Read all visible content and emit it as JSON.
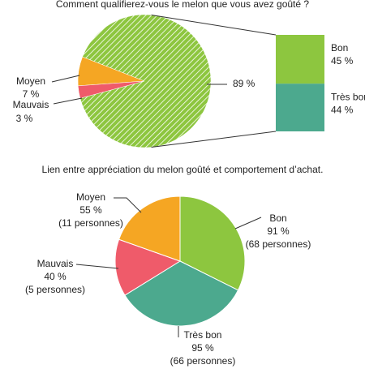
{
  "chart_data": [
    {
      "type": "bar-of-pie",
      "title": "Comment qualifierez-vous le melon que vous avez goûté ?",
      "categories": [
        null,
        "Moyen",
        "Mauvais"
      ],
      "values": [
        89,
        7,
        3
      ],
      "value_labels": [
        "89 %",
        "7 %",
        "3 %"
      ],
      "colors": [
        "#8dc63f",
        "#f5a623",
        "#ef5b6a"
      ],
      "breakdown": {
        "categories": [
          "Bon",
          "Très bon"
        ],
        "values": [
          45,
          44
        ],
        "value_labels": [
          "45 %",
          "44 %"
        ],
        "colors": [
          "#8dc63f",
          "#4ca98e"
        ]
      }
    },
    {
      "type": "pie",
      "title": "Lien entre appréciation du melon goûté et comportement d’achat.",
      "categories": [
        "Bon",
        "Très bon",
        "Mauvais",
        "Moyen"
      ],
      "values": [
        91,
        95,
        40,
        55
      ],
      "value_labels": [
        "91 %",
        "95 %",
        "40 %",
        "55 %"
      ],
      "details": [
        "(68 personnes)",
        "(66 personnes)",
        "(5 personnes)",
        "(11 personnes)"
      ],
      "colors": [
        "#8dc63f",
        "#4ca98e",
        "#ef5b6a",
        "#f5a623"
      ]
    }
  ]
}
